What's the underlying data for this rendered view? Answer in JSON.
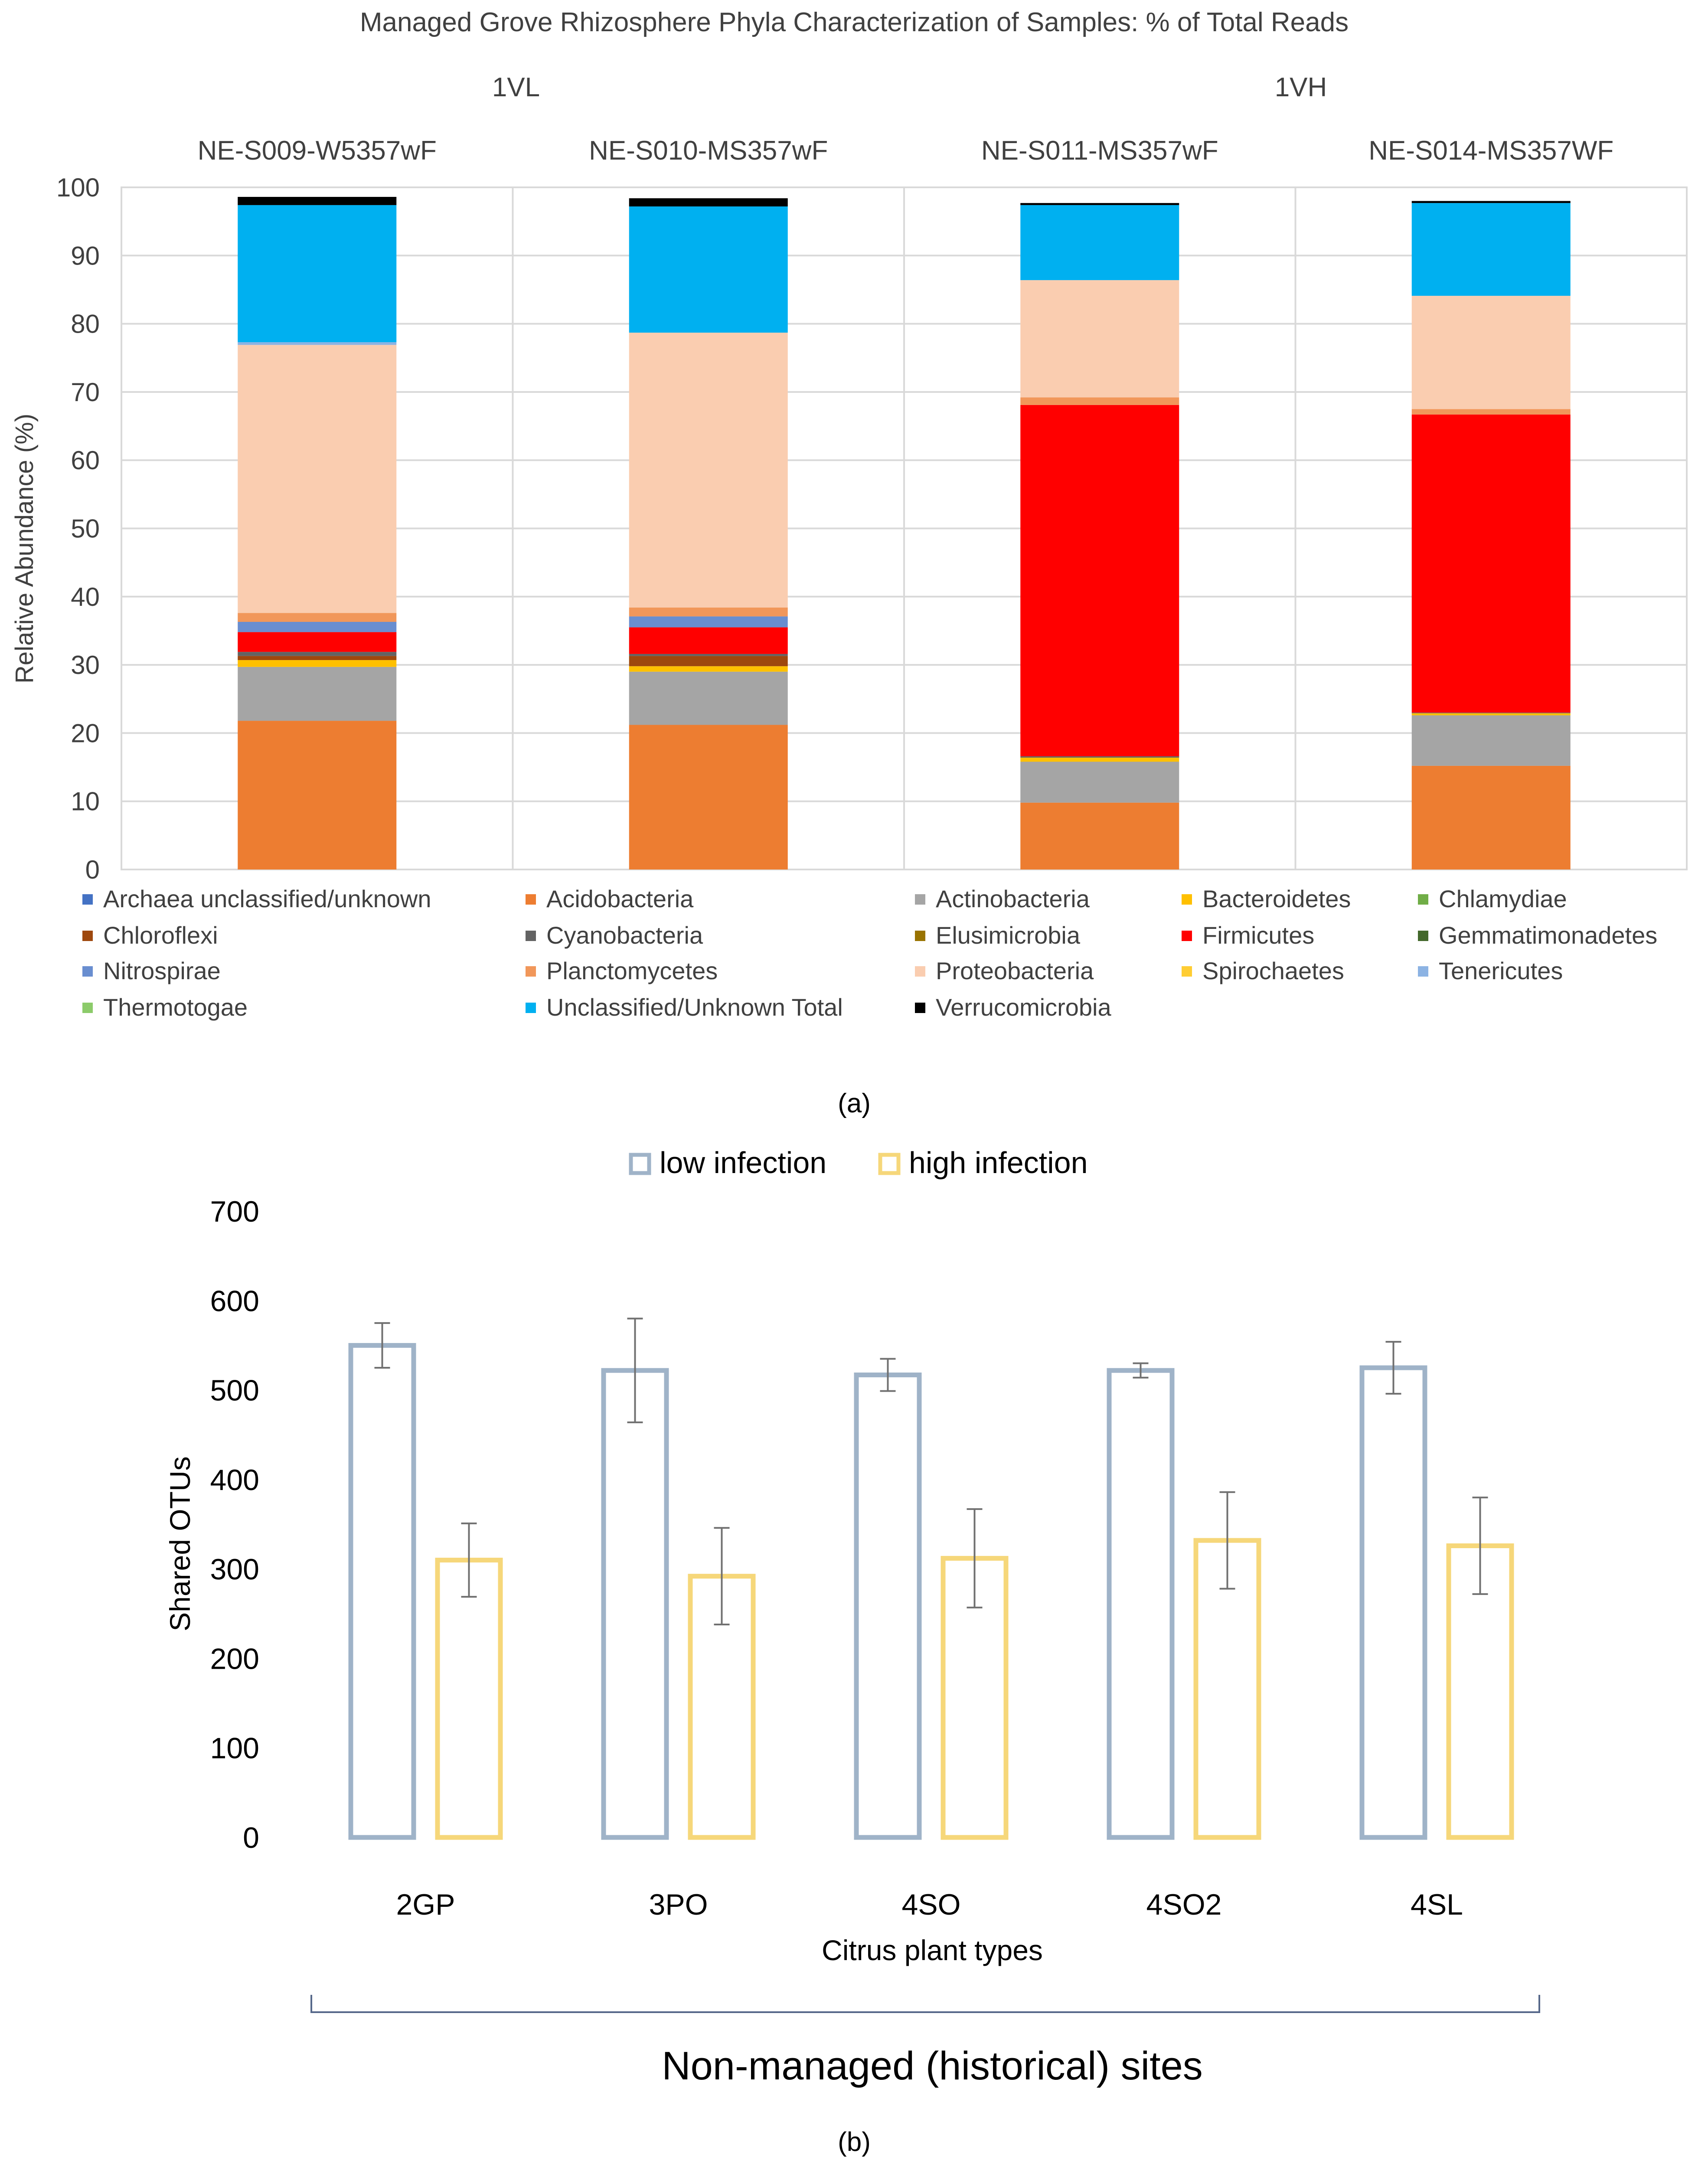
{
  "chart_data": [
    {
      "panel_label": "(a)",
      "type": "bar",
      "stacked": true,
      "title": "Managed Grove Rhizosphere Phyla Characterization of Samples: % of Total Reads",
      "groups": [
        {
          "name": "1VL",
          "categories": [
            "NE-S009-W5357wF",
            "NE-S010-MS357wF"
          ]
        },
        {
          "name": "1VH",
          "categories": [
            "NE-S011-MS357wF",
            "NE-S014-MS357WF"
          ]
        }
      ],
      "categories": [
        "NE-S009-W5357wF",
        "NE-S010-MS357wF",
        "NE-S011-MS357wF",
        "NE-S014-MS357WF"
      ],
      "ylabel": "Relative Abundance (%)",
      "xlabel": "",
      "ylim": [
        0,
        100
      ],
      "yticks": [
        0,
        10,
        20,
        30,
        40,
        50,
        60,
        70,
        80,
        90,
        100
      ],
      "grid": true,
      "legend_position": "bottom",
      "series": [
        {
          "name": "Archaea unclassified/unknown",
          "color": "#4472C4",
          "values": [
            0,
            0,
            0,
            0
          ]
        },
        {
          "name": "Acidobacteria",
          "color": "#ED7D31",
          "values": [
            21.8,
            21.2,
            9.8,
            15.2
          ]
        },
        {
          "name": "Actinobacteria",
          "color": "#A5A5A5",
          "values": [
            7.9,
            7.8,
            6.0,
            7.4
          ]
        },
        {
          "name": "Bacteroidetes",
          "color": "#FFC000",
          "values": [
            1.0,
            0.8,
            0.6,
            0.3
          ]
        },
        {
          "name": "Chlamydiae",
          "color": "#70AD47",
          "values": [
            0,
            0,
            0,
            0
          ]
        },
        {
          "name": "Chloroflexi",
          "color": "#9E480E",
          "values": [
            0.6,
            1.5,
            0,
            0
          ]
        },
        {
          "name": "Cyanobacteria",
          "color": "#636363",
          "values": [
            0.6,
            0.3,
            0.2,
            0.1
          ]
        },
        {
          "name": "Elusimicrobia",
          "color": "#997300",
          "values": [
            0,
            0,
            0,
            0
          ]
        },
        {
          "name": "Firmicutes",
          "color": "#FF0000",
          "values": [
            2.9,
            3.9,
            51.5,
            43.7
          ]
        },
        {
          "name": "Gemmatimonadetes",
          "color": "#43682B",
          "values": [
            0,
            0,
            0,
            0
          ]
        },
        {
          "name": "Nitrospirae",
          "color": "#698ED0",
          "values": [
            1.5,
            1.6,
            0,
            0
          ]
        },
        {
          "name": "Planctomycetes",
          "color": "#F1975A",
          "values": [
            1.3,
            1.3,
            1.1,
            0.8
          ]
        },
        {
          "name": "Proteobacteria",
          "color": "#FACDB0",
          "values": [
            39.3,
            40.3,
            17.2,
            16.6
          ]
        },
        {
          "name": "Spirochaetes",
          "color": "#FFCD33",
          "values": [
            0,
            0,
            0,
            0
          ]
        },
        {
          "name": "Tenericutes",
          "color": "#8CB3E3",
          "values": [
            0.4,
            0,
            0,
            0
          ]
        },
        {
          "name": "Thermotogae",
          "color": "#8CCB6A",
          "values": [
            0,
            0,
            0,
            0
          ]
        },
        {
          "name": "Unclassified/Unknown Total",
          "color": "#00B0F0",
          "values": [
            20.1,
            18.5,
            11.0,
            13.6
          ]
        },
        {
          "name": "Verrucomicrobia",
          "color": "#000000",
          "values": [
            1.2,
            1.2,
            0.3,
            0.3
          ]
        }
      ]
    },
    {
      "panel_label": "(b)",
      "type": "bar",
      "title": "",
      "categories": [
        "2GP",
        "3PO",
        "4SO",
        "4SO2",
        "4SL"
      ],
      "xlabel": "Citrus plant types",
      "ylabel": "Shared OTUs",
      "ylim": [
        0,
        700
      ],
      "yticks": [
        0,
        100,
        200,
        300,
        400,
        500,
        600,
        700
      ],
      "grid": false,
      "legend_position": "top",
      "series": [
        {
          "name": "low infection",
          "color": "#9FB3C8",
          "values": [
            550,
            522,
            517,
            522,
            525
          ],
          "error": [
            25,
            58,
            18,
            8,
            29
          ]
        },
        {
          "name": "high infection",
          "color": "#F6D77A",
          "values": [
            310,
            292,
            312,
            332,
            326
          ],
          "error": [
            41,
            54,
            55,
            54,
            54
          ]
        }
      ],
      "bracket_label": "Non-managed (historical) sites"
    }
  ]
}
